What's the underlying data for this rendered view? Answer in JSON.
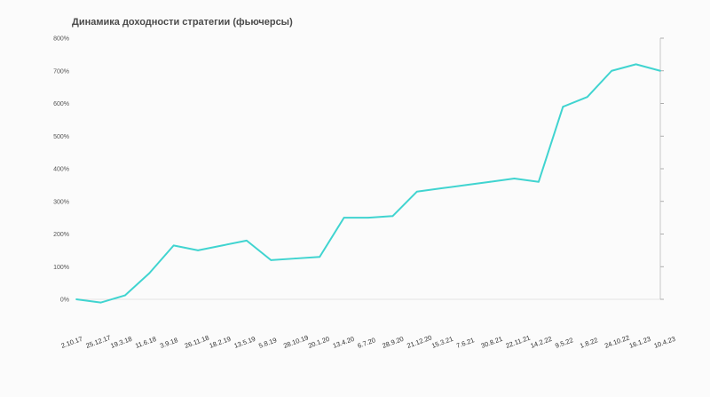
{
  "chart_data": {
    "type": "line",
    "title": "Динамика доходности стратегии (фьючерсы)",
    "xlabel": "",
    "ylabel": "",
    "ylim": [
      0,
      800
    ],
    "y_ticks": [
      "0%",
      "100%",
      "200%",
      "300%",
      "400%",
      "500%",
      "600%",
      "700%",
      "800%"
    ],
    "x_ticks": [
      "2.10.17",
      "25.12.17",
      "19.3.18",
      "11.6.18",
      "3.9.18",
      "26.11.18",
      "18.2.19",
      "13.5.19",
      "5.8.19",
      "28.10.19",
      "20.1.20",
      "13.4.20",
      "6.7.20",
      "28.9.20",
      "21.12.20",
      "15.3.21",
      "7.6.21",
      "30.8.21",
      "22.11.21",
      "14.2.22",
      "9.5.22",
      "1.8.22",
      "24.10.22",
      "16.1.23",
      "10.4.23"
    ],
    "line_color": "#40d4d0",
    "grid": false,
    "legend": "none",
    "series": [
      {
        "x": [
          "2.10.17",
          "25.12.17",
          "19.3.18",
          "11.6.18",
          "3.9.18",
          "26.11.18",
          "18.2.19",
          "13.5.19",
          "5.8.19",
          "28.10.19",
          "20.1.20",
          "13.4.20",
          "6.7.20",
          "28.9.20",
          "21.12.20",
          "15.3.21",
          "7.6.21",
          "30.8.21",
          "22.11.21",
          "14.2.22",
          "9.5.22",
          "1.8.22",
          "24.10.22",
          "16.1.23",
          "10.4.23"
        ],
        "values": [
          0,
          -10,
          12,
          80,
          165,
          150,
          165,
          180,
          120,
          125,
          130,
          250,
          250,
          255,
          330,
          340,
          350,
          360,
          370,
          360,
          590,
          620,
          700,
          720,
          700
        ]
      }
    ]
  }
}
